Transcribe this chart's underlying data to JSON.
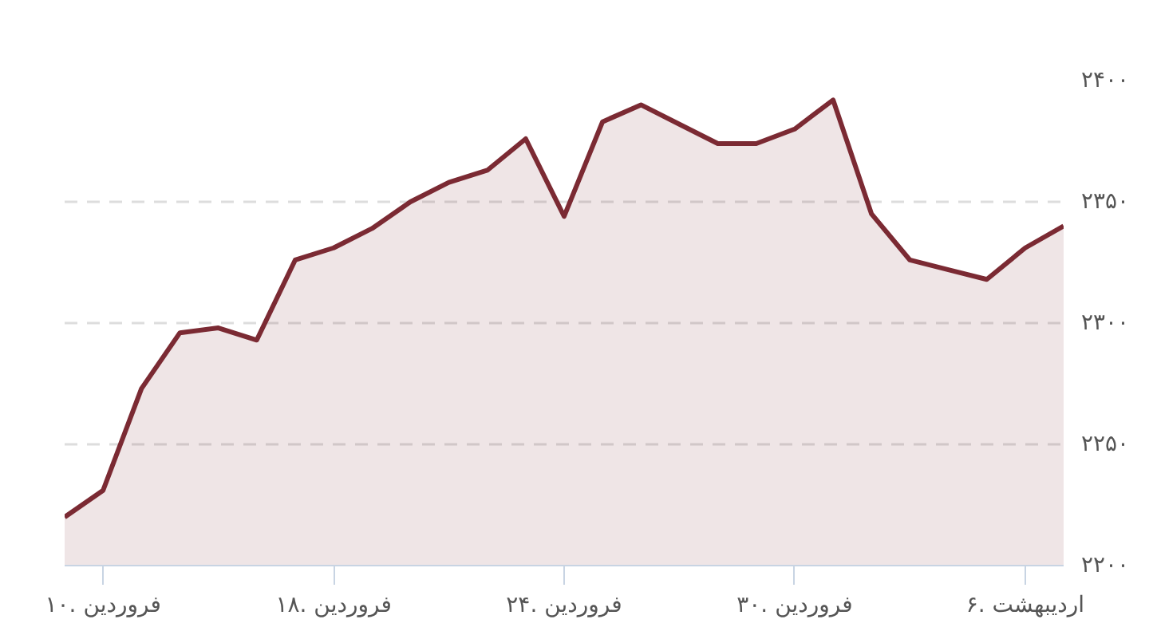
{
  "chart_data": {
    "type": "area",
    "categories": [
      null,
      "۱۰. فروردین",
      null,
      null,
      null,
      null,
      null,
      "۱۸. فروردین",
      null,
      null,
      null,
      null,
      null,
      "۲۴. فروردین",
      null,
      null,
      null,
      null,
      null,
      "۳۰. فروردین",
      null,
      null,
      null,
      null,
      null,
      "۶. اردیبهشت",
      null
    ],
    "series": [
      {
        "color": "#7b2a33",
        "values": [
          2220,
          2231,
          2273,
          2296,
          2298,
          2293,
          2326,
          2331,
          2339,
          2350,
          2358,
          2363,
          2376,
          2344,
          2383,
          2390,
          2382,
          2374,
          2374,
          2380,
          2392,
          2345,
          2326,
          2322,
          2318,
          2331,
          2340
        ]
      }
    ],
    "ylim": [
      2200,
      2400
    ],
    "yticks": [
      {
        "value": 2200,
        "label": "۲۲۰۰"
      },
      {
        "value": 2250,
        "label": "۲۲۵۰"
      },
      {
        "value": 2300,
        "label": "۲۳۰۰"
      },
      {
        "value": 2350,
        "label": "۲۳۵۰"
      },
      {
        "value": 2400,
        "label": "۲۴۰۰"
      }
    ],
    "grid": "y",
    "line_style": "solid"
  }
}
